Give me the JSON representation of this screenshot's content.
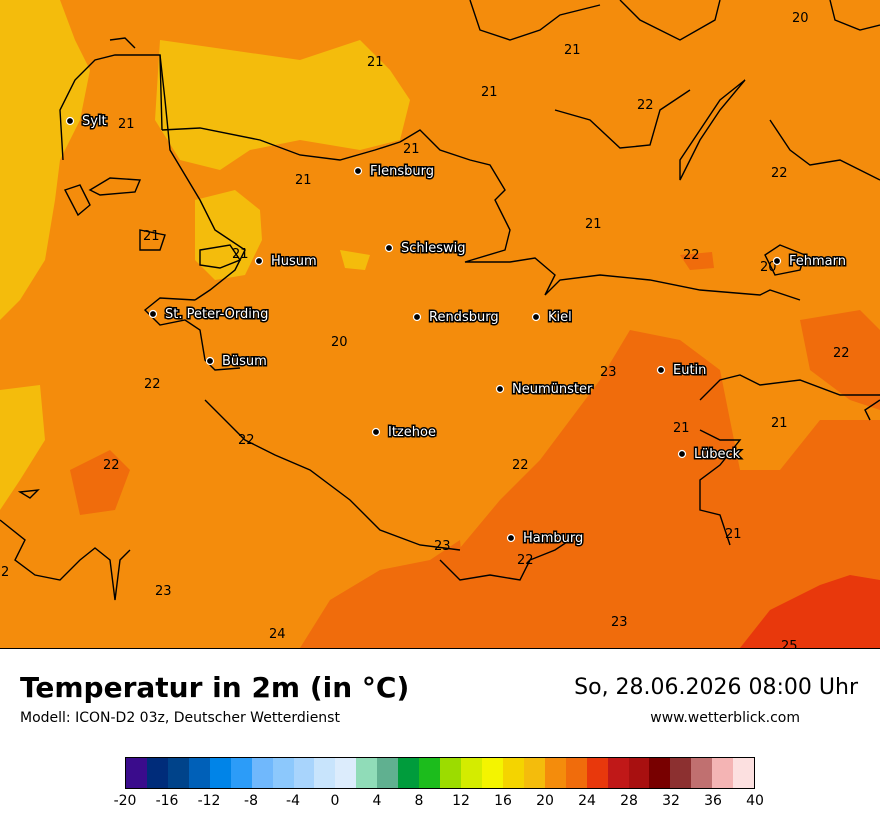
{
  "title": "Temperatur in 2m (in °C)",
  "model": "Modell: ICON-D2 03z, Deutscher Wetterdienst",
  "datetime": "So, 28.06.2026 08:00 Uhr",
  "website": "www.wetterblick.com",
  "cities": [
    {
      "name": "Sylt"
    },
    {
      "name": "Flensburg"
    },
    {
      "name": "Schleswig"
    },
    {
      "name": "Husum"
    },
    {
      "name": "St. Peter-Ording"
    },
    {
      "name": "Rendsburg"
    },
    {
      "name": "Kiel"
    },
    {
      "name": "Fehmarn"
    },
    {
      "name": "Büsum"
    },
    {
      "name": "Eutin"
    },
    {
      "name": "Neumünster"
    },
    {
      "name": "Itzehoe"
    },
    {
      "name": "Lübeck"
    },
    {
      "name": "Hamburg"
    }
  ],
  "temperature_labels": [
    "20",
    "21",
    "21",
    "21",
    "22",
    "21",
    "21",
    "21",
    "21",
    "22",
    "21",
    "21",
    "20",
    "22",
    "22",
    "22",
    "20",
    "23",
    "22",
    "22",
    "21",
    "21",
    "22",
    "23",
    "22",
    "21",
    "23",
    "23",
    "24",
    "2",
    "21",
    "21",
    "23",
    "25"
  ],
  "legend": {
    "colors": [
      "#3a0c8c",
      "#002c7a",
      "#00438a",
      "#0060b8",
      "#0084e8",
      "#2c9cf8",
      "#70b8fc",
      "#8cc8fc",
      "#a8d4fc",
      "#c8e4fc",
      "#dcecfc",
      "#90dcb8",
      "#60b090",
      "#009c3c",
      "#1cbc1c",
      "#9cdc00",
      "#d4ec00",
      "#f4f400",
      "#f4d400",
      "#f4bc0c",
      "#f48c0c",
      "#f06c0c",
      "#e8380c",
      "#c01818",
      "#a81010",
      "#780000",
      "#8c3030",
      "#c07070",
      "#f4b4b4",
      "#fce0e0"
    ],
    "ticks": [
      "-20",
      "-16",
      "-12",
      "-8",
      "-4",
      "0",
      "4",
      "8",
      "12",
      "16",
      "20",
      "24",
      "28",
      "32",
      "36",
      "40"
    ]
  }
}
